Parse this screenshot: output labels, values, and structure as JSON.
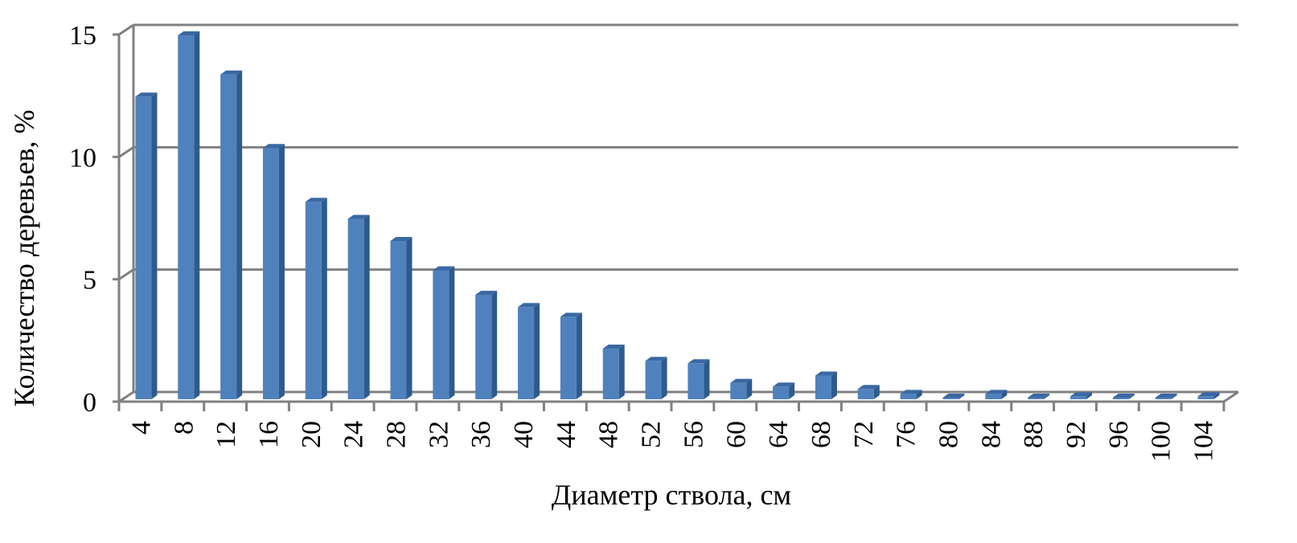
{
  "chart_data": {
    "type": "bar",
    "style": "3d-column",
    "title": "",
    "xlabel": "Диаметр ствола, см",
    "ylabel": "Количество деревьев, %",
    "categories": [
      "4",
      "8",
      "12",
      "16",
      "20",
      "24",
      "28",
      "32",
      "36",
      "40",
      "44",
      "48",
      "52",
      "56",
      "60",
      "64",
      "68",
      "72",
      "76",
      "80",
      "84",
      "88",
      "92",
      "96",
      "100",
      "104"
    ],
    "values": [
      12.4,
      14.9,
      13.3,
      10.3,
      8.1,
      7.4,
      6.5,
      5.3,
      4.3,
      3.8,
      3.4,
      2.1,
      1.6,
      1.5,
      0.7,
      0.55,
      1.0,
      0.45,
      0.25,
      0.1,
      0.25,
      0.1,
      0.15,
      0.0,
      0.0,
      0.15
    ],
    "ylim": [
      0,
      15
    ],
    "yticks": [
      0,
      5,
      10,
      15
    ],
    "grid": true,
    "legend": "none",
    "colors": {
      "bar_front": "#4f81bd",
      "bar_side": "#2f5a8d",
      "bar_top": "#3a68a3",
      "grid": "#808080",
      "axis": "#808080"
    }
  }
}
